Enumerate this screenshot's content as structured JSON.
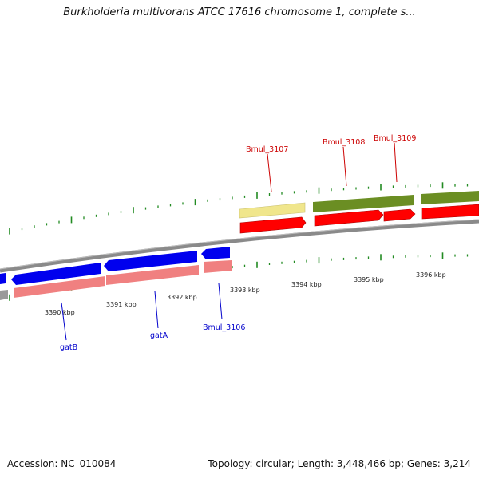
{
  "title": "Burkholderia multivorans ATCC 17616 chromosome 1, complete s...",
  "footer": {
    "accession": "Accession: NC_010084",
    "stats": "Topology: circular; Length: 3,448,466 bp; Genes: 3,214"
  },
  "colors": {
    "backbone": "#8a8a8a",
    "forward_cds": "#ff0000",
    "forward_trna": "#f0e68c",
    "forward_gene_bar": "#6b8e23",
    "reverse_cds": "#0000ee",
    "reverse_gene_bar": "#f08080",
    "forward_label": "#cc0000",
    "reverse_label": "#0000cc",
    "tick": "#228b22"
  },
  "scale_labels": [
    "3390 kbp",
    "3391 kbp",
    "3392 kbp",
    "3393 kbp",
    "3394 kbp",
    "3395 kbp",
    "3396 kbp"
  ],
  "forward_genes": [
    {
      "label": "Bmul_3107"
    },
    {
      "label": "Bmul_3108"
    },
    {
      "label": "Bmul_3109"
    }
  ],
  "reverse_genes": [
    {
      "label": "gatB"
    },
    {
      "label": "gatA"
    },
    {
      "label": "Bmul_3106"
    }
  ]
}
